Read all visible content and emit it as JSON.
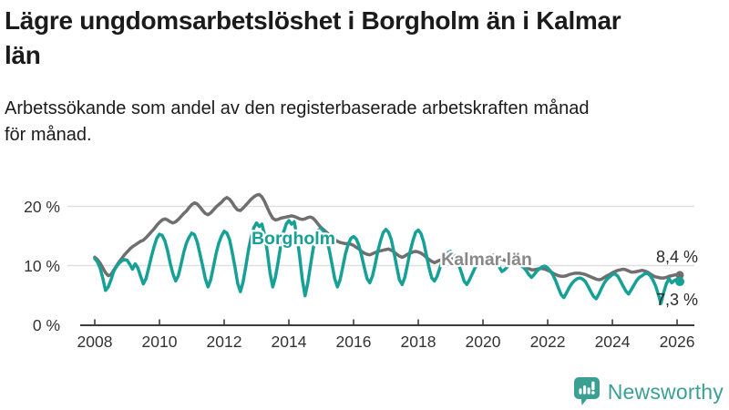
{
  "header": {
    "title": "Lägre ungdomsarbetslöshet i Borgholm än i Kalmar län",
    "title_lines": [
      "Lägre ungdomsarbetslöshet i Borgholm än i Kalmar",
      "län"
    ],
    "subtitle": "Arbetssökande som andel av den registerbaserade arbetskraften månad för månad.",
    "subtitle_lines": [
      "Arbetssökande som andel av den registerbaserade arbetskraften månad",
      "för månad."
    ]
  },
  "chart_data": {
    "type": "line",
    "title": "Lägre ungdomsarbetslöshet i Borgholm än i Kalmar län",
    "subtitle": "Arbetssökande som andel av den registerbaserade arbetskraften månad för månad.",
    "unit": "%",
    "x_start": "2008-01",
    "x_end": "2026-02",
    "frequency": "monthly",
    "grid": "horizontal",
    "legend_position": "inline-labels",
    "ylim": [
      0,
      24
    ],
    "y_ticks": [
      0,
      10,
      20
    ],
    "y_tick_labels": [
      "0 %",
      "10 %",
      "20 %"
    ],
    "x_tick_years": [
      2008,
      2010,
      2012,
      2014,
      2016,
      2018,
      2020,
      2022,
      2024,
      2026
    ],
    "x_tick_labels": [
      "2008",
      "2010",
      "2012",
      "2014",
      "2016",
      "2018",
      "2020",
      "2022",
      "2024",
      "2026"
    ],
    "colors": {
      "borgholm": "#16A096",
      "kalmar": "#6F6F6F",
      "kalmar_label": "#888888",
      "grid": "#E0E0E0",
      "axis": "#3C3C3C",
      "tick_text": "#333333",
      "end_label_text": "#2B2B2B"
    },
    "series": [
      {
        "name": "Kalmar län",
        "color": "#6F6F6F",
        "label_color": "#888888",
        "end_label": "8,4 %",
        "end_value": 8.4,
        "values": [
          11.4,
          11.0,
          10.4,
          9.6,
          8.8,
          8.3,
          8.5,
          9.2,
          9.9,
          10.6,
          11.2,
          11.8,
          12.3,
          12.8,
          13.2,
          13.5,
          13.8,
          14.1,
          14.3,
          14.7,
          15.2,
          15.7,
          16.2,
          16.8,
          17.3,
          17.7,
          17.9,
          17.7,
          17.4,
          17.2,
          17.4,
          17.8,
          18.3,
          18.8,
          19.2,
          19.8,
          20.3,
          20.6,
          20.4,
          19.9,
          19.3,
          18.8,
          18.6,
          18.9,
          19.4,
          19.9,
          20.3,
          20.7,
          21.2,
          21.5,
          21.2,
          20.6,
          19.9,
          19.4,
          19.3,
          19.7,
          20.2,
          20.7,
          21.2,
          21.6,
          21.9,
          22.0,
          21.6,
          20.8,
          19.8,
          18.8,
          18.0,
          17.7,
          17.8,
          18.0,
          18.1,
          18.2,
          18.3,
          18.4,
          18.3,
          18.1,
          17.9,
          17.8,
          17.9,
          18.1,
          18.2,
          18.0,
          17.5,
          16.9,
          16.4,
          16.0,
          15.6,
          15.2,
          14.8,
          14.4,
          14.1,
          13.9,
          13.8,
          13.7,
          13.7,
          13.6,
          13.4,
          13.1,
          12.8,
          12.4,
          12.1,
          11.9,
          11.8,
          12.0,
          12.2,
          12.4,
          12.5,
          12.6,
          12.7,
          12.8,
          12.6,
          12.3,
          11.9,
          11.6,
          11.4,
          11.6,
          11.9,
          12.1,
          12.3,
          12.4,
          12.3,
          12.1,
          11.8,
          11.4,
          11.0,
          10.7,
          10.5,
          10.7,
          10.9,
          11.1,
          11.2,
          11.3,
          11.2,
          11.1,
          10.9,
          10.7,
          10.4,
          10.2,
          10.1,
          10.3,
          10.5,
          10.7,
          10.8,
          11.0,
          11.2,
          11.3,
          11.2,
          11.6,
          11.8,
          11.7,
          11.4,
          11.1,
          10.9,
          10.7,
          10.5,
          10.4,
          10.4,
          10.3,
          10.1,
          9.9,
          9.7,
          9.5,
          9.3,
          9.3,
          9.4,
          9.5,
          9.5,
          9.4,
          9.2,
          9.0,
          8.7,
          8.5,
          8.3,
          8.2,
          8.2,
          8.3,
          8.5,
          8.6,
          8.7,
          8.7,
          8.7,
          8.6,
          8.5,
          8.3,
          8.1,
          7.9,
          7.7,
          7.6,
          7.7,
          8.0,
          8.3,
          8.5,
          8.8,
          9.0,
          9.2,
          9.3,
          9.4,
          9.3,
          9.1,
          8.9,
          8.9,
          9.0,
          9.1,
          9.2,
          9.1,
          8.9,
          8.6,
          8.3,
          8.1,
          8.0,
          7.9,
          7.9,
          8.0,
          8.2,
          8.3,
          8.4,
          8.5,
          8.4
        ]
      },
      {
        "name": "Borgholm",
        "color": "#16A096",
        "label_color": "#16A096",
        "end_label": "7,3 %",
        "end_value": 7.3,
        "values": [
          11.2,
          10.6,
          9.6,
          7.8,
          5.8,
          6.4,
          7.6,
          9.0,
          9.8,
          10.4,
          10.8,
          11.0,
          10.9,
          10.2,
          9.4,
          10.3,
          9.6,
          8.2,
          6.9,
          7.8,
          9.6,
          11.5,
          13.2,
          14.6,
          15.3,
          15.1,
          14.2,
          12.5,
          10.4,
          8.6,
          7.4,
          8.3,
          10.2,
          12.2,
          13.8,
          14.8,
          15.5,
          15.2,
          14.0,
          12.0,
          10.0,
          7.8,
          6.4,
          7.6,
          9.8,
          12.0,
          13.8,
          15.0,
          15.8,
          15.5,
          14.4,
          12.2,
          9.8,
          7.0,
          5.6,
          7.2,
          9.8,
          12.6,
          14.8,
          16.4,
          17.2,
          16.6,
          17.0,
          15.2,
          12.4,
          8.8,
          6.4,
          8.0,
          10.6,
          13.4,
          15.6,
          17.0,
          17.6,
          17.0,
          17.4,
          15.0,
          11.6,
          7.6,
          4.9,
          7.0,
          10.0,
          12.8,
          14.8,
          16.0,
          16.3,
          15.7,
          14.6,
          12.6,
          10.2,
          7.8,
          6.4,
          7.6,
          9.8,
          12.0,
          13.6,
          14.6,
          14.9,
          14.5,
          13.4,
          11.6,
          9.6,
          7.8,
          7.1,
          8.2,
          10.2,
          12.4,
          14.2,
          15.6,
          16.1,
          15.6,
          14.4,
          12.2,
          9.8,
          7.6,
          6.8,
          8.0,
          10.2,
          12.4,
          14.2,
          15.6,
          16.0,
          15.4,
          14.0,
          11.8,
          9.6,
          7.9,
          7.4,
          8.2,
          9.6,
          10.8,
          11.6,
          12.2,
          12.4,
          12.1,
          11.4,
          10.2,
          8.8,
          7.4,
          6.8,
          7.6,
          8.6,
          9.6,
          10.2,
          10.6,
          10.8,
          10.9,
          10.6,
          11.2,
          11.5,
          10.9,
          9.8,
          9.0,
          9.3,
          9.8,
          10.2,
          10.5,
          10.5,
          10.3,
          10.0,
          9.7,
          9.2,
          8.5,
          8.0,
          8.5,
          9.1,
          9.5,
          9.8,
          9.9,
          9.6,
          9.1,
          8.4,
          7.4,
          6.2,
          5.1,
          4.6,
          5.4,
          6.3,
          7.0,
          7.5,
          7.8,
          7.9,
          7.7,
          7.3,
          6.5,
          5.6,
          4.8,
          4.4,
          5.2,
          6.2,
          7.1,
          7.7,
          8.1,
          8.5,
          8.6,
          8.2,
          7.4,
          6.5,
          5.7,
          5.2,
          5.9,
          6.7,
          7.5,
          8.0,
          8.3,
          8.6,
          8.7,
          8.3,
          7.6,
          6.6,
          5.2,
          3.6,
          5.4,
          6.9,
          7.8,
          7.1,
          7.5,
          7.7,
          7.3
        ]
      }
    ]
  },
  "footer": {
    "brand": "Newsworthy",
    "brand_color": "#3BA093",
    "logo_icon": "bar-chart-speech-bubble-icon"
  }
}
